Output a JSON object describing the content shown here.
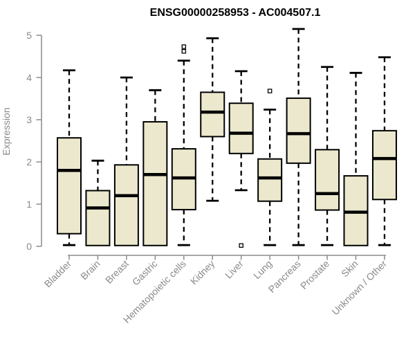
{
  "chart_data": {
    "type": "boxplot",
    "title": "ENSG00000258953 - AC004507.1",
    "ylabel": "Expression",
    "xlabel": "",
    "ylim": [
      0,
      5
    ],
    "yticks": [
      0,
      1,
      2,
      3,
      4,
      5
    ],
    "grid": false,
    "legend": "none",
    "categories": [
      "Bladder",
      "Brain",
      "Breast",
      "Gastric",
      "Hematopoietic cells",
      "Kidney",
      "Liver",
      "Lung",
      "Pancreas",
      "Prostate",
      "Skin",
      "Unknown / Other"
    ],
    "boxes": [
      {
        "category": "Bladder",
        "low": 0.03,
        "q1": 0.3,
        "median": 1.8,
        "q3": 2.57,
        "high": 4.17,
        "outliers": []
      },
      {
        "category": "Brain",
        "low": 0.02,
        "q1": 0.02,
        "median": 0.91,
        "q3": 1.32,
        "high": 2.03,
        "outliers": []
      },
      {
        "category": "Breast",
        "low": 0.02,
        "q1": 0.02,
        "median": 1.2,
        "q3": 1.93,
        "high": 4.0,
        "outliers": []
      },
      {
        "category": "Gastric",
        "low": 0.02,
        "q1": 0.02,
        "median": 1.7,
        "q3": 2.95,
        "high": 3.7,
        "outliers": []
      },
      {
        "category": "Hematopoietic cells",
        "low": 0.03,
        "q1": 0.87,
        "median": 1.62,
        "q3": 2.31,
        "high": 4.4,
        "outliers": [
          4.62,
          4.73
        ]
      },
      {
        "category": "Kidney",
        "low": 1.08,
        "q1": 2.6,
        "median": 3.18,
        "q3": 3.65,
        "high": 4.93,
        "outliers": []
      },
      {
        "category": "Liver",
        "low": 1.33,
        "q1": 2.2,
        "median": 2.68,
        "q3": 3.39,
        "high": 4.15,
        "outliers": [
          0.02
        ]
      },
      {
        "category": "Lung",
        "low": 0.03,
        "q1": 1.07,
        "median": 1.62,
        "q3": 2.07,
        "high": 3.24,
        "outliers": [
          3.68
        ]
      },
      {
        "category": "Pancreas",
        "low": 0.03,
        "q1": 1.97,
        "median": 2.67,
        "q3": 3.51,
        "high": 5.15,
        "outliers": []
      },
      {
        "category": "Prostate",
        "low": 0.03,
        "q1": 0.86,
        "median": 1.25,
        "q3": 2.29,
        "high": 4.25,
        "outliers": []
      },
      {
        "category": "Skin",
        "low": 0.02,
        "q1": 0.02,
        "median": 0.81,
        "q3": 1.67,
        "high": 4.11,
        "outliers": []
      },
      {
        "category": "Unknown / Other",
        "low": 0.03,
        "q1": 1.11,
        "median": 2.08,
        "q3": 2.74,
        "high": 4.48,
        "outliers": []
      }
    ],
    "colors": {
      "box_fill": "#ECE8CD",
      "box_stroke": "#000000",
      "median": "#000000",
      "whisker": "#000000",
      "axis": "#8a8a8a",
      "title": "#000000",
      "background": "#ffffff"
    }
  }
}
